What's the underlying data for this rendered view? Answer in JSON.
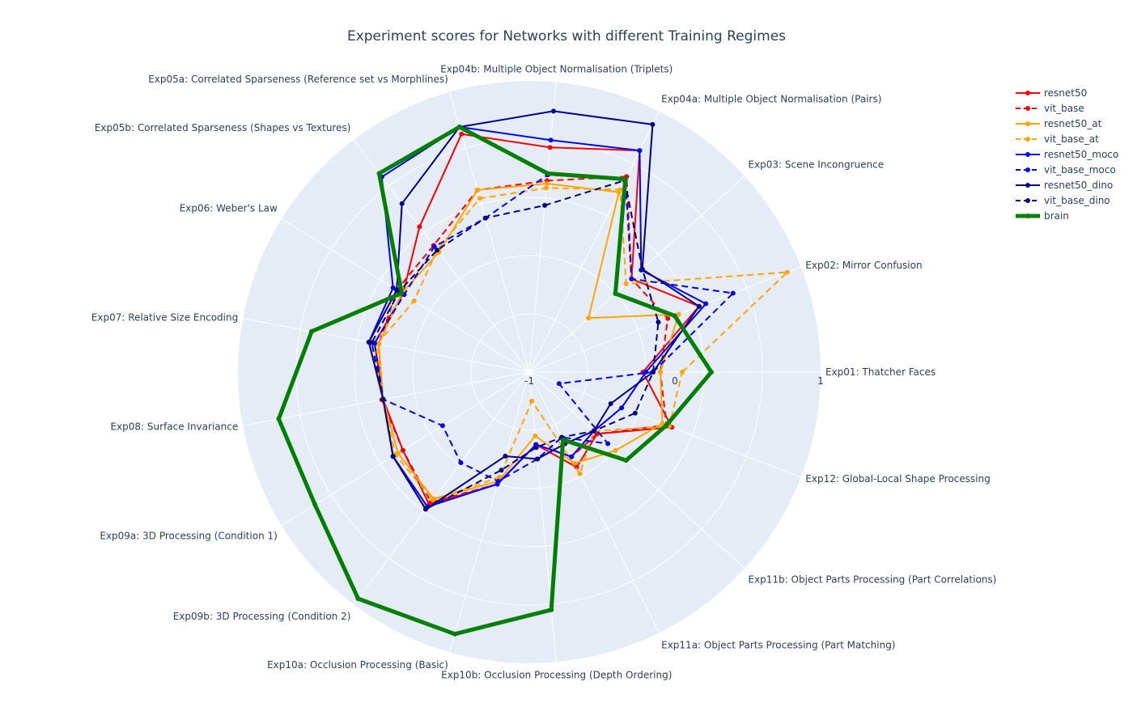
{
  "chart_data": {
    "type": "radar",
    "title": "Experiment scores for Networks with different Training Regimes",
    "radial_range": [
      -1,
      1
    ],
    "radial_ticks": [
      -1,
      0,
      1
    ],
    "grid": true,
    "legend_position": "top-right",
    "categories": [
      "Exp01: Thatcher Faces",
      "Exp02: Mirror Confusion",
      "Exp03: Scene Incongruence",
      "Exp04a: Multiple Object Normalisation (Pairs)",
      "Exp04b: Multiple Object Normalisation (Triplets)",
      "Exp05a: Correlated Sparseness (Reference set vs Morphlines)",
      "Exp05b: Correlated Sparseness (Shapes vs Textures)",
      "Exp06: Weber's Law",
      "Exp07: Relative Size Encoding",
      "Exp08: Surface Invariance",
      "Exp09a: 3D Processing (Condition 1)",
      "Exp09b: 3D Processing (Condition 2)",
      "Exp10a: Occlusion Processing (Basic)",
      "Exp10b: Occlusion Processing (Depth Ordering)",
      "Exp11a: Object Parts Processing (Part Matching)",
      "Exp11b: Object Parts Processing (Part Correlations)",
      "Exp12: Global-Local Shape Processing"
    ],
    "series": [
      {
        "name": "resnet50",
        "color": "#ff0000",
        "dash": "solid",
        "width": 2,
        "values": [
          -0.22,
          0.25,
          -0.05,
          0.7,
          0.55,
          0.7,
          0.25,
          0.02,
          0.08,
          0.02,
          0.02,
          0.14,
          -0.2,
          -0.5,
          -0.27,
          -0.37,
          0.05
        ]
      },
      {
        "name": "vit_base",
        "color": "#ff0000",
        "dash": "dash",
        "width": 2,
        "values": [
          -0.1,
          0.02,
          -0.05,
          0.5,
          0.32,
          0.3,
          0.09,
          0.07,
          0.05,
          0.03,
          0.02,
          0.12,
          -0.2,
          -0.5,
          -0.35,
          -0.37,
          0.01
        ]
      },
      {
        "name": "resnet50_at",
        "color": "#ffa500",
        "dash": "solid",
        "width": 2,
        "values": [
          -0.1,
          0.1,
          -0.45,
          0.38,
          0.3,
          0.3,
          0.03,
          0.03,
          0.05,
          0.02,
          0.06,
          0.09,
          -0.22,
          -0.56,
          -0.3,
          -0.2,
          -0.02
        ]
      },
      {
        "name": "vit_base_at",
        "color": "#ffa500",
        "dash": "dash",
        "width": 2,
        "values": [
          0.05,
          0.9,
          -0.1,
          0.4,
          0.27,
          0.24,
          0.05,
          -0.07,
          0.06,
          0.02,
          0.08,
          0.1,
          -0.25,
          -0.8,
          -0.22,
          -0.4,
          0.03
        ]
      },
      {
        "name": "resnet50_moco",
        "color": "#0000ff",
        "dash": "solid",
        "width": 2,
        "values": [
          -0.2,
          0.3,
          0.04,
          0.7,
          0.6,
          0.75,
          0.68,
          0.1,
          0.12,
          0.02,
          0.1,
          0.16,
          -0.2,
          -0.5,
          -0.35,
          -0.4,
          -0.32
        ]
      },
      {
        "name": "vit_base_moco",
        "color": "#0000ff",
        "dash": "dash",
        "width": 2,
        "values": [
          -0.15,
          0.5,
          -0.05,
          0.48,
          0.36,
          0.1,
          0.08,
          0.01,
          0.08,
          0.02,
          -0.3,
          -0.22,
          -0.22,
          -0.4,
          -0.5,
          -0.27,
          -0.78
        ]
      },
      {
        "name": "resnet50_dino",
        "color": "#00008b",
        "dash": "solid",
        "width": 2,
        "values": [
          -0.15,
          0.25,
          0.05,
          0.9,
          0.8,
          0.75,
          0.45,
          0.07,
          0.12,
          0.02,
          0.1,
          0.18,
          -0.4,
          -0.4,
          -0.45,
          -0.4,
          -0.4
        ]
      },
      {
        "name": "vit_base_dino",
        "color": "#00008b",
        "dash": "dash",
        "width": 2,
        "values": [
          -0.15,
          -0.05,
          0.05,
          0.47,
          0.15,
          0.1,
          0.05,
          0.05,
          0.1,
          0.02,
          0.1,
          0.18,
          -0.3,
          -0.48,
          -0.5,
          -0.4,
          -0.22
        ]
      },
      {
        "name": "brain",
        "color": "#008000",
        "dash": "solid",
        "width": 5,
        "values": [
          0.25,
          0.07,
          -0.2,
          0.48,
          0.37,
          0.75,
          0.71,
          0.03,
          0.52,
          0.75,
          0.73,
          0.95,
          0.87,
          0.64,
          -0.48,
          -0.1,
          0.01
        ]
      }
    ]
  }
}
